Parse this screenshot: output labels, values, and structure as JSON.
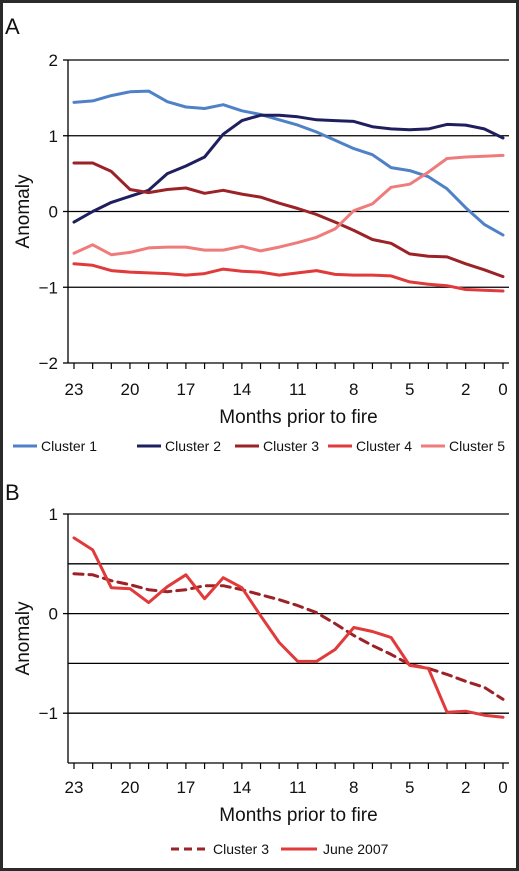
{
  "colors": {
    "cluster1": "#4f81c7",
    "cluster2": "#1f1f5f",
    "cluster3": "#9b2226",
    "cluster4": "#e03a3a",
    "cluster5": "#ef7b7b",
    "june2007": "#e03a3a"
  },
  "chart_data": [
    {
      "panel": "A",
      "type": "line",
      "xlabel": "Months prior to fire",
      "ylabel": "Anomaly",
      "xlim": [
        23,
        0
      ],
      "ylim": [
        -2,
        2
      ],
      "x_reversed": true,
      "xticks": [
        23,
        20,
        17,
        14,
        11,
        8,
        5,
        2,
        0
      ],
      "yticks": [
        -2,
        -1,
        0,
        1,
        2
      ],
      "grid": "horizontal",
      "legend": "bottom",
      "x": [
        23,
        22,
        21,
        20,
        19,
        18,
        17,
        16,
        15,
        14,
        13,
        12,
        11,
        10,
        9,
        8,
        7,
        6,
        5,
        4,
        3,
        2,
        1,
        0
      ],
      "series": [
        {
          "name": "Cluster 1",
          "color_key": "cluster1",
          "values": [
            1.44,
            1.46,
            1.53,
            1.58,
            1.59,
            1.45,
            1.38,
            1.36,
            1.41,
            1.33,
            1.28,
            1.21,
            1.14,
            1.05,
            0.94,
            0.83,
            0.75,
            0.58,
            0.54,
            0.46,
            0.3,
            0.05,
            -0.17,
            -0.31
          ]
        },
        {
          "name": "Cluster 2",
          "color_key": "cluster2",
          "values": [
            -0.14,
            0.0,
            0.12,
            0.2,
            0.28,
            0.5,
            0.6,
            0.72,
            1.02,
            1.2,
            1.27,
            1.27,
            1.25,
            1.21,
            1.2,
            1.19,
            1.12,
            1.09,
            1.08,
            1.09,
            1.15,
            1.14,
            1.09,
            0.97
          ]
        },
        {
          "name": "Cluster 3",
          "color_key": "cluster3",
          "values": [
            0.64,
            0.64,
            0.53,
            0.29,
            0.25,
            0.29,
            0.31,
            0.24,
            0.28,
            0.23,
            0.19,
            0.11,
            0.04,
            -0.04,
            -0.14,
            -0.25,
            -0.37,
            -0.42,
            -0.56,
            -0.59,
            -0.6,
            -0.69,
            -0.77,
            -0.86
          ]
        },
        {
          "name": "Cluster 4",
          "color_key": "cluster4",
          "values": [
            -0.69,
            -0.71,
            -0.78,
            -0.8,
            -0.81,
            -0.82,
            -0.84,
            -0.82,
            -0.76,
            -0.79,
            -0.8,
            -0.84,
            -0.81,
            -0.78,
            -0.83,
            -0.84,
            -0.84,
            -0.85,
            -0.93,
            -0.96,
            -0.98,
            -1.03,
            -1.04,
            -1.05
          ]
        },
        {
          "name": "Cluster 5",
          "color_key": "cluster5",
          "values": [
            -0.55,
            -0.44,
            -0.57,
            -0.54,
            -0.48,
            -0.47,
            -0.47,
            -0.51,
            -0.51,
            -0.46,
            -0.52,
            -0.47,
            -0.41,
            -0.34,
            -0.23,
            0.01,
            0.1,
            0.32,
            0.36,
            0.52,
            0.7,
            0.72,
            0.73,
            0.74
          ]
        }
      ]
    },
    {
      "panel": "B",
      "type": "line",
      "xlabel": "Months prior to fire",
      "ylabel": "Anomaly",
      "xlim": [
        23,
        0
      ],
      "ylim": [
        -1.5,
        1
      ],
      "x_reversed": true,
      "xticks": [
        23,
        20,
        17,
        14,
        11,
        8,
        5,
        2,
        0
      ],
      "yticks": [
        -1,
        0,
        1
      ],
      "ytick_labels": [
        "-1",
        "0",
        "1"
      ],
      "gridlines": [
        1,
        0.5,
        0,
        -0.5,
        -1
      ],
      "legend": "bottom",
      "x": [
        23,
        22,
        21,
        20,
        19,
        18,
        17,
        16,
        15,
        14,
        13,
        12,
        11,
        10,
        9,
        8,
        7,
        6,
        5,
        4,
        3,
        2,
        1,
        0
      ],
      "series": [
        {
          "name": "Cluster 3",
          "color_key": "cluster3",
          "dashed": true,
          "values": [
            0.4,
            0.39,
            0.33,
            0.29,
            0.24,
            0.22,
            0.24,
            0.28,
            0.28,
            0.24,
            0.19,
            0.14,
            0.08,
            0.01,
            -0.1,
            -0.22,
            -0.32,
            -0.41,
            -0.51,
            -0.55,
            -0.61,
            -0.68,
            -0.74,
            -0.86
          ]
        },
        {
          "name": "June 2007",
          "color_key": "june2007",
          "dashed": false,
          "values": [
            0.76,
            0.64,
            0.26,
            0.25,
            0.11,
            0.27,
            0.39,
            0.15,
            0.36,
            0.26,
            -0.02,
            -0.29,
            -0.48,
            -0.48,
            -0.36,
            -0.14,
            -0.18,
            -0.24,
            -0.52,
            -0.55,
            -0.99,
            -0.98,
            -1.02,
            -1.04
          ]
        }
      ]
    }
  ]
}
